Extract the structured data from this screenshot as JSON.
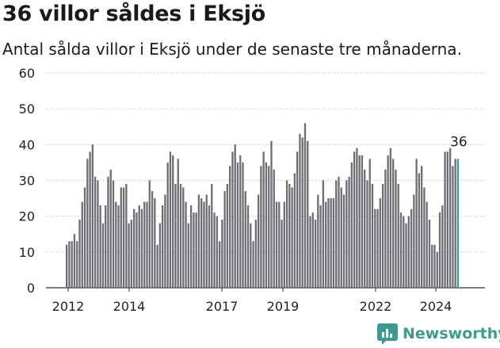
{
  "title": "36 villor såldes i Eksjö",
  "subtitle": "Antal sålda villor i Eksjö under de senaste tre månaderna.",
  "brand": "Newsworthy",
  "chart_data": {
    "type": "bar",
    "ylim": [
      0,
      60
    ],
    "yticks": [
      0,
      10,
      20,
      30,
      40,
      50,
      60
    ],
    "xticks": [
      "2012",
      "2014",
      "2017",
      "2019",
      "2022",
      "2024"
    ],
    "grid": true,
    "bar_color": "#6d6d73",
    "highlight_color": "#3e9a8f",
    "last_label": "36",
    "values": [
      12,
      13,
      13,
      15,
      13,
      19,
      24,
      28,
      36,
      38,
      40,
      31,
      30,
      23,
      18,
      23,
      31,
      33,
      30,
      24,
      23,
      28,
      28,
      29,
      18,
      19,
      22,
      21,
      23,
      22,
      24,
      24,
      30,
      27,
      25,
      12,
      18,
      23,
      26,
      35,
      38,
      37,
      29,
      36,
      29,
      28,
      24,
      18,
      23,
      21,
      21,
      26,
      25,
      24,
      26,
      23,
      29,
      21,
      20,
      13,
      19,
      27,
      29,
      34,
      38,
      40,
      35,
      37,
      35,
      27,
      23,
      18,
      13,
      19,
      26,
      34,
      38,
      35,
      34,
      41,
      33,
      24,
      24,
      19,
      24,
      30,
      29,
      28,
      32,
      38,
      43,
      42,
      46,
      41,
      20,
      21,
      19,
      26,
      23,
      30,
      24,
      25,
      25,
      25,
      30,
      31,
      28,
      26,
      30,
      31,
      35,
      38,
      39,
      37,
      37,
      33,
      30,
      36,
      29,
      22,
      22,
      25,
      29,
      33,
      37,
      39,
      36,
      33,
      29,
      21,
      20,
      18,
      20,
      22,
      26,
      36,
      32,
      34,
      28,
      24,
      19,
      12,
      12,
      10,
      21,
      23,
      38,
      38,
      39,
      34,
      36,
      36
    ]
  }
}
